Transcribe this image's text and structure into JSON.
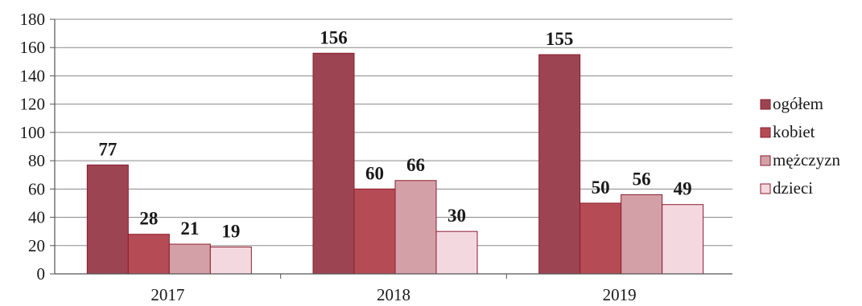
{
  "chart_data": {
    "type": "bar",
    "title": "",
    "xlabel": "",
    "ylabel": "",
    "categories": [
      "2017",
      "2018",
      "2019"
    ],
    "ylim": [
      0,
      180
    ],
    "yticks": [
      0,
      20,
      40,
      60,
      80,
      100,
      120,
      140,
      160,
      180
    ],
    "grid": true,
    "legend_position": "right",
    "series": [
      {
        "name": "ogółem",
        "values": [
          77,
          156,
          155
        ],
        "color": "#9c4452"
      },
      {
        "name": "kobiet",
        "values": [
          28,
          60,
          50
        ],
        "color": "#b54c55"
      },
      {
        "name": "mężczyzn",
        "values": [
          21,
          66,
          56
        ],
        "color": "#d4a0a8"
      },
      {
        "name": "dzieci",
        "values": [
          19,
          30,
          49
        ],
        "color": "#f4d8e0"
      }
    ],
    "data_labels": true
  }
}
